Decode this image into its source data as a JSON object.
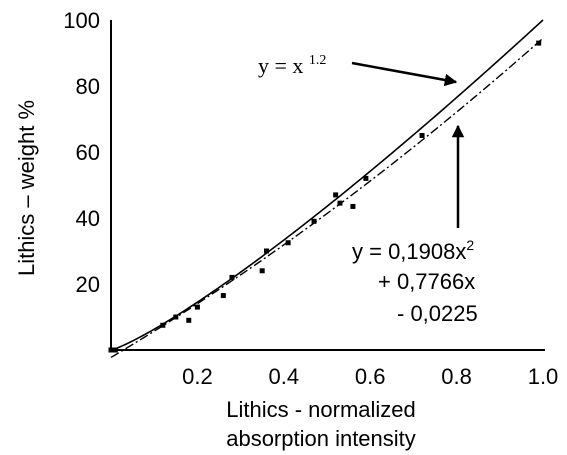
{
  "chart_data": {
    "type": "scatter",
    "title": "",
    "xlabel": [
      "Lithics - normalized",
      "absorption intensity"
    ],
    "ylabel": "Lithics – weight %",
    "xlim": [
      0,
      1.0
    ],
    "ylim": [
      0,
      100
    ],
    "x_ticks": [
      "0.2",
      "0.4",
      "0.6",
      "0.8",
      "1.0"
    ],
    "x_tick_values": [
      0.2,
      0.4,
      0.6,
      0.8,
      1.0
    ],
    "y_ticks": [
      "20",
      "40",
      "60",
      "80",
      "100"
    ],
    "y_tick_values": [
      20,
      40,
      60,
      80,
      100
    ],
    "grid": false,
    "legend": "none",
    "series": [
      {
        "kind": "points",
        "x": [
          0.0,
          0.01,
          0.12,
          0.15,
          0.18,
          0.2,
          0.26,
          0.28,
          0.35,
          0.36,
          0.41,
          0.47,
          0.52,
          0.53,
          0.56,
          0.59,
          0.72,
          0.99
        ],
        "y": [
          0.0,
          0.0,
          7.5,
          10.0,
          9.0,
          13.0,
          16.5,
          22.0,
          24.0,
          30.0,
          32.5,
          39.0,
          47.0,
          44.5,
          43.5,
          52.0,
          65.0,
          93.0
        ]
      },
      {
        "kind": "curve",
        "model": "power",
        "exponent": 1.2,
        "style": "solid"
      },
      {
        "kind": "curve",
        "model": "polynomial",
        "coefficients": [
          -0.0225,
          0.7766,
          0.1908
        ],
        "style": "dash-dot"
      }
    ],
    "annotations": {
      "power_eq": {
        "base": "y = x ",
        "exp": "1.2"
      },
      "poly_eq": {
        "line1_base": "y = 0,1908x",
        "line1_sup": "2",
        "line2": "+ 0,7766x",
        "line3": "- 0,0225"
      }
    },
    "colors": {
      "ink": "#000000",
      "background": "#ffffff"
    }
  }
}
